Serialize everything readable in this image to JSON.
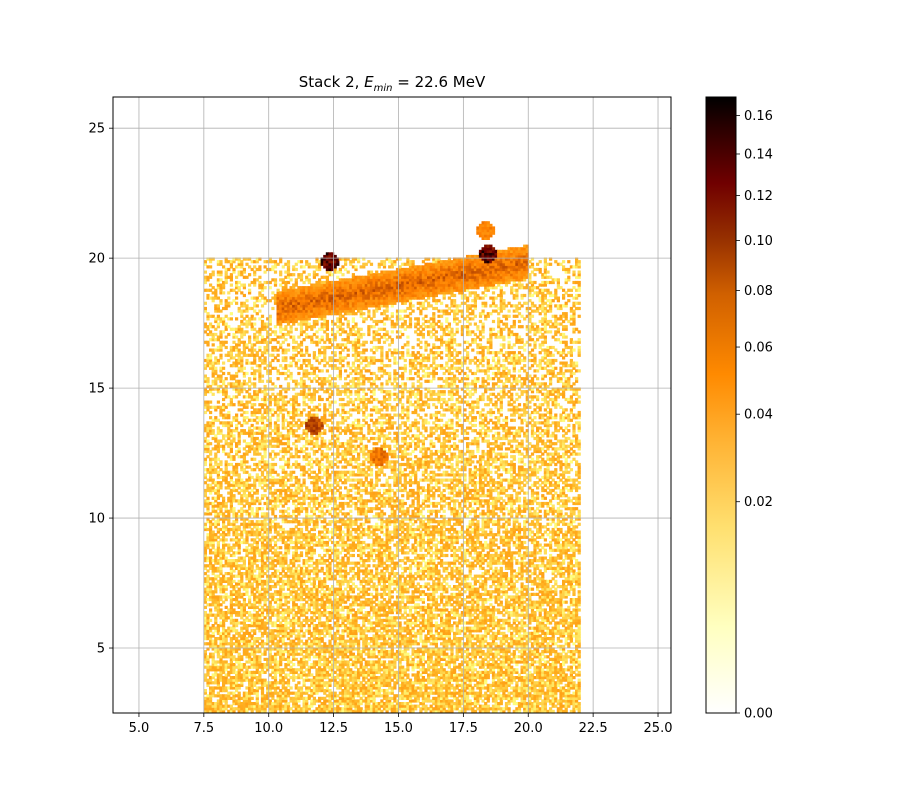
{
  "chart_data": {
    "type": "heatmap",
    "title_prefix": "Stack 2, ",
    "title_symbol": "E",
    "title_subscript": "min",
    "title_suffix": " = 22.6 MeV",
    "xlabel": "",
    "ylabel": "",
    "xlim": [
      4.0,
      25.5
    ],
    "ylim": [
      2.5,
      26.2
    ],
    "grid": true,
    "x_ticks": [
      "5.0",
      "7.5",
      "10.0",
      "12.5",
      "15.0",
      "17.5",
      "20.0",
      "22.5",
      "25.0"
    ],
    "x_tick_values": [
      5.0,
      7.5,
      10.0,
      12.5,
      15.0,
      17.5,
      20.0,
      22.5,
      25.0
    ],
    "y_ticks": [
      "5",
      "10",
      "15",
      "20",
      "25"
    ],
    "y_tick_values": [
      5,
      10,
      15,
      20,
      25
    ],
    "colorbar": {
      "min": 0.0,
      "max": 0.17,
      "scale": "power-norm",
      "ticks": [
        "0.00",
        "0.02",
        "0.04",
        "0.06",
        "0.08",
        "0.10",
        "0.12",
        "0.14",
        "0.16"
      ],
      "tick_values": [
        0.0,
        0.02,
        0.04,
        0.06,
        0.08,
        0.1,
        0.12,
        0.14,
        0.16
      ],
      "colormap": "afmhot_r",
      "colors": [
        "#ffffff",
        "#ffff80",
        "#ffb020",
        "#ff8000",
        "#b04000",
        "#700000",
        "#000000"
      ]
    },
    "regions": [
      {
        "feature": "diffuse background",
        "x_range": [
          7.5,
          22.0
        ],
        "y_range": [
          2.5,
          20.0
        ],
        "value": 0.015
      },
      {
        "feature": "band",
        "x_start": [
          10.2,
          18.0
        ],
        "x_end": [
          20.0,
          19.8
        ],
        "thickness": 1.3,
        "value": 0.07
      },
      {
        "feature": "spot",
        "x": 12.3,
        "y": 19.8,
        "value": 0.16
      },
      {
        "feature": "spot",
        "x": 18.3,
        "y": 21.0,
        "value": 0.05
      },
      {
        "feature": "spot",
        "x": 18.4,
        "y": 20.1,
        "value": 0.16
      },
      {
        "feature": "spot",
        "x": 11.7,
        "y": 13.5,
        "value": 0.09
      },
      {
        "feature": "spot",
        "x": 14.2,
        "y": 12.3,
        "value": 0.06
      }
    ]
  }
}
